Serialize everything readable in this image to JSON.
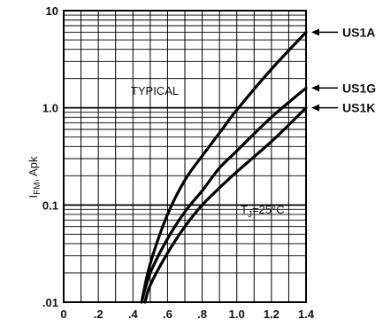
{
  "chart_data": {
    "type": "line",
    "x_scale": "linear",
    "y_scale": "log",
    "xlim": [
      0,
      1.4
    ],
    "ylim": [
      0.01,
      10
    ],
    "grid": true,
    "x_ticks": [
      "0",
      ".2",
      ".4",
      ".6",
      ".8",
      "1.0",
      "1.2",
      "1.4"
    ],
    "y_ticks": [
      "10",
      "1.0",
      "0.1",
      ".01"
    ],
    "ylabel_main": "I",
    "ylabel_sub": "FM",
    "ylabel_rest": ", Apk",
    "annotations": {
      "typical": "TYPICAL",
      "tj_main": "T",
      "tj_sub": "J",
      "tj_rest": "=25°C"
    },
    "series": [
      {
        "name": "US1A",
        "x": [
          0.45,
          0.5,
          0.6,
          0.7,
          0.8,
          0.9,
          1.0,
          1.2,
          1.4
        ],
        "y": [
          0.01,
          0.025,
          0.08,
          0.18,
          0.32,
          0.55,
          0.95,
          2.5,
          6.0
        ]
      },
      {
        "name": "US1G",
        "x": [
          0.45,
          0.5,
          0.6,
          0.7,
          0.8,
          0.9,
          1.0,
          1.2,
          1.4
        ],
        "y": [
          0.01,
          0.02,
          0.045,
          0.085,
          0.14,
          0.24,
          0.36,
          0.8,
          1.6
        ]
      },
      {
        "name": "US1K",
        "x": [
          0.47,
          0.5,
          0.6,
          0.7,
          0.8,
          0.9,
          1.0,
          1.2,
          1.4
        ],
        "y": [
          0.01,
          0.015,
          0.032,
          0.06,
          0.1,
          0.15,
          0.22,
          0.45,
          1.0
        ]
      }
    ]
  }
}
